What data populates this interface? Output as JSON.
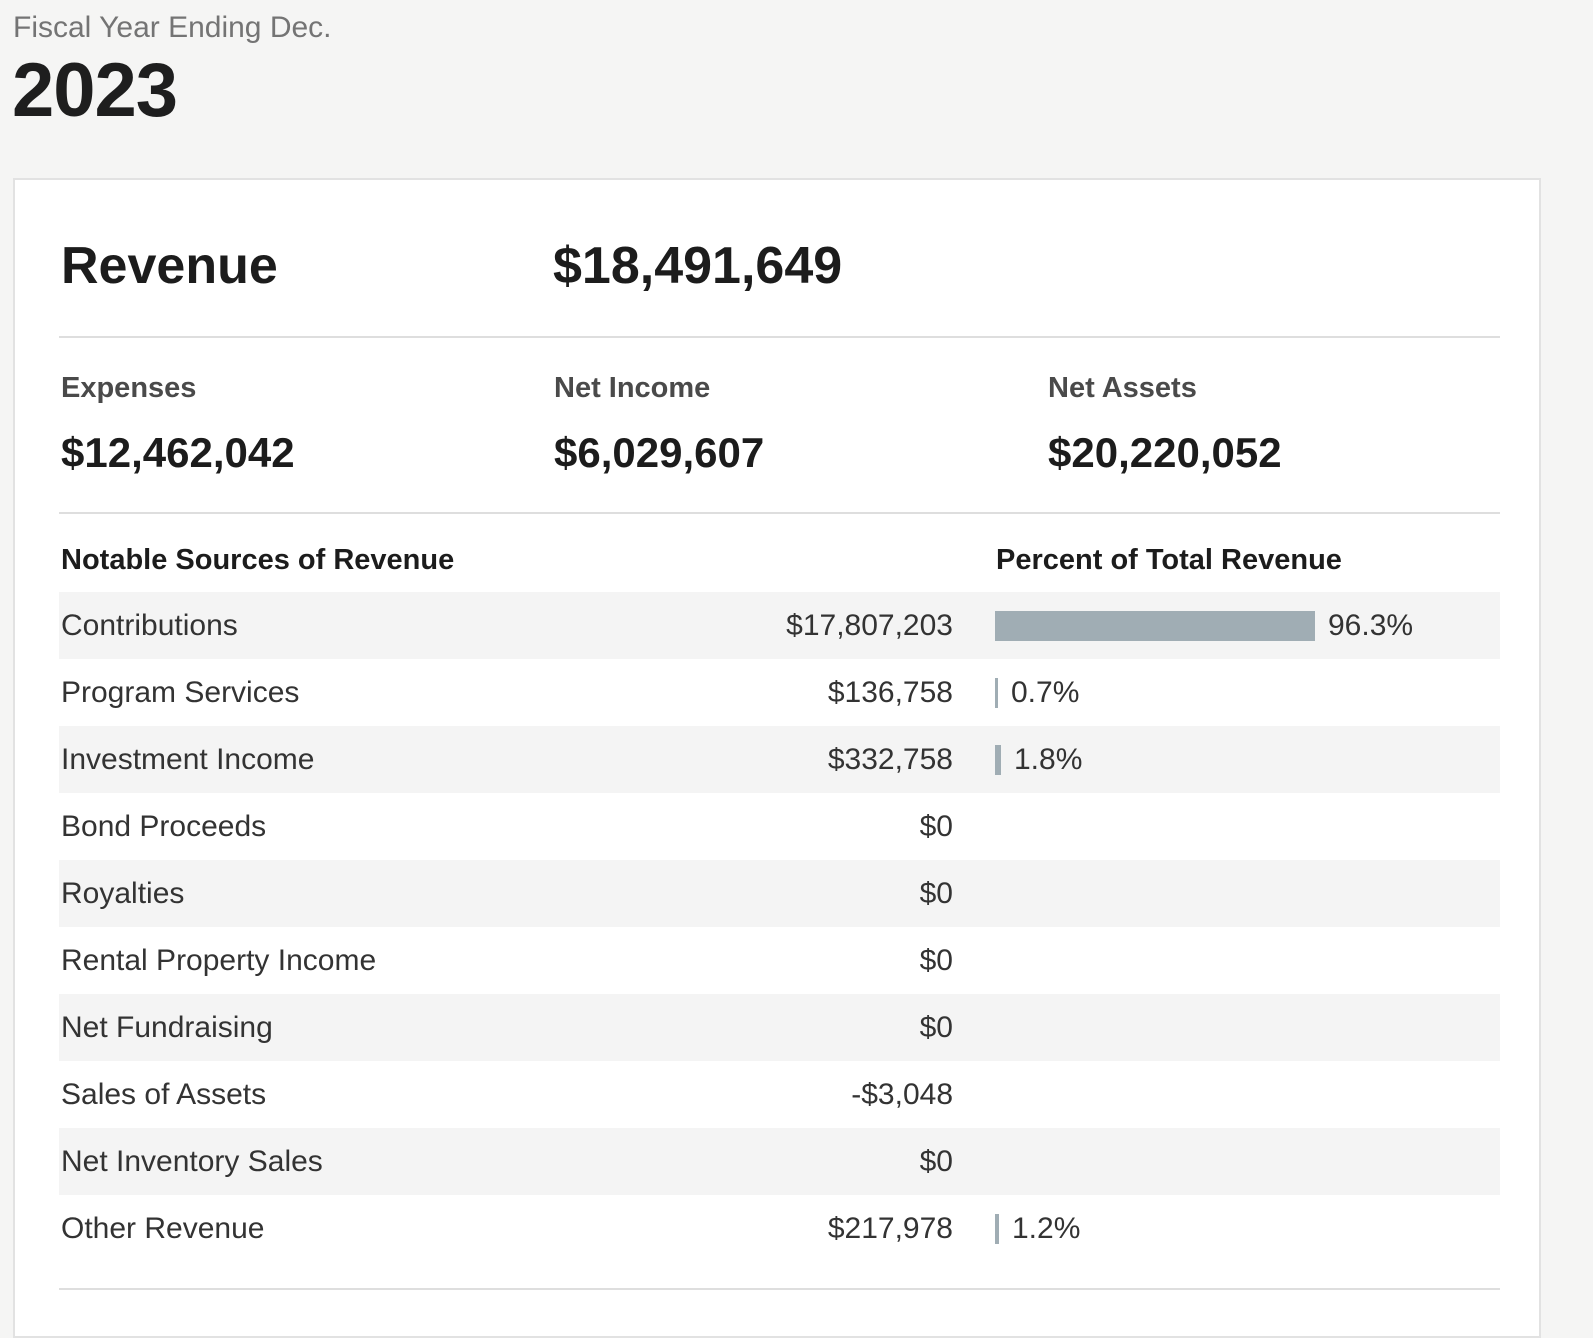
{
  "header": {
    "fiscal_label": "Fiscal Year Ending Dec.",
    "year": "2023"
  },
  "summary": {
    "revenue_label": "Revenue",
    "revenue_value": "$18,491,649",
    "expenses_label": "Expenses",
    "expenses_value": "$12,462,042",
    "net_income_label": "Net Income",
    "net_income_value": "$6,029,607",
    "net_assets_label": "Net Assets",
    "net_assets_value": "$20,220,052"
  },
  "table": {
    "col_source": "Notable Sources of Revenue",
    "col_percent": "Percent of Total Revenue",
    "rows": [
      {
        "name": "Contributions",
        "amount": "$17,807,203",
        "percent": "96.3%",
        "percent_value": 96.3
      },
      {
        "name": "Program Services",
        "amount": "$136,758",
        "percent": "0.7%",
        "percent_value": 0.7
      },
      {
        "name": "Investment Income",
        "amount": "$332,758",
        "percent": "1.8%",
        "percent_value": 1.8
      },
      {
        "name": "Bond Proceeds",
        "amount": "$0",
        "percent": "",
        "percent_value": 0
      },
      {
        "name": "Royalties",
        "amount": "$0",
        "percent": "",
        "percent_value": 0
      },
      {
        "name": "Rental Property Income",
        "amount": "$0",
        "percent": "",
        "percent_value": 0
      },
      {
        "name": "Net Fundraising",
        "amount": "$0",
        "percent": "",
        "percent_value": 0
      },
      {
        "name": "Sales of Assets",
        "amount": "-$3,048",
        "percent": "",
        "percent_value": 0
      },
      {
        "name": "Net Inventory Sales",
        "amount": "$0",
        "percent": "",
        "percent_value": 0
      },
      {
        "name": "Other Revenue",
        "amount": "$217,978",
        "percent": "1.2%",
        "percent_value": 1.2
      }
    ]
  },
  "colors": {
    "bar": "#a0adb4",
    "row_shade": "#f4f4f4"
  }
}
